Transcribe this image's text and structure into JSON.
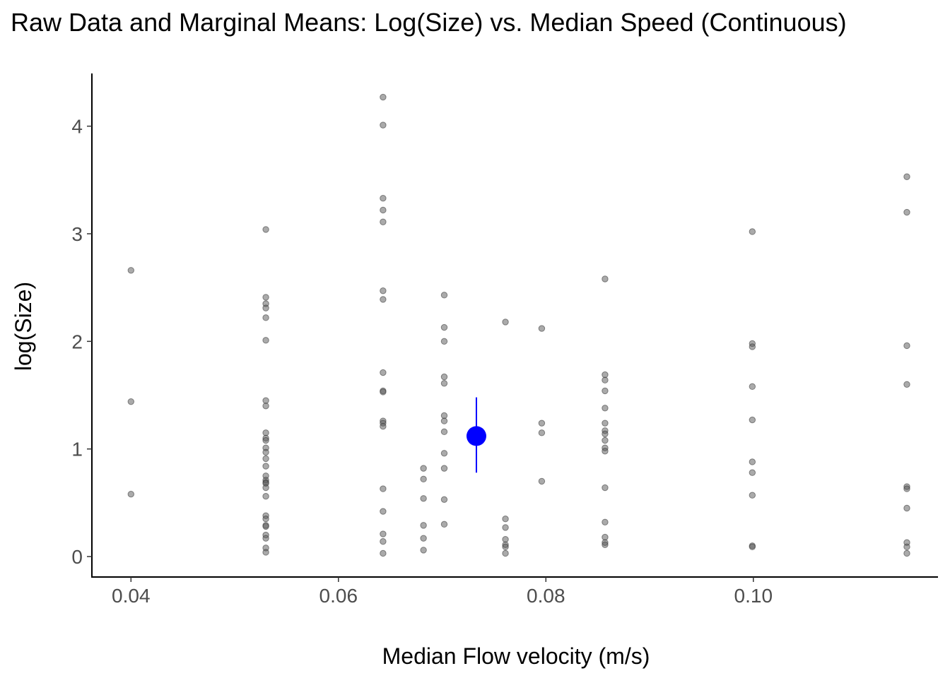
{
  "chart_data": {
    "type": "scatter",
    "title": "Raw Data and Marginal Means: Log(Size) vs. Median Speed (Continuous)",
    "xlabel": "Median Flow velocity (m/s)",
    "ylabel": "log(Size)",
    "xlim": [
      0.0363,
      0.1178
    ],
    "ylim": [
      -0.19,
      4.49
    ],
    "x_ticks": [
      {
        "value": 0.04,
        "label": "0.04"
      },
      {
        "value": 0.06,
        "label": "0.06"
      },
      {
        "value": 0.08,
        "label": "0.08"
      },
      {
        "value": 0.1,
        "label": "0.10"
      }
    ],
    "y_ticks": [
      {
        "value": 0,
        "label": "0"
      },
      {
        "value": 1,
        "label": "1"
      },
      {
        "value": 2,
        "label": "2"
      },
      {
        "value": 3,
        "label": "3"
      },
      {
        "value": 4,
        "label": "4"
      }
    ],
    "grid": false,
    "legend": "none",
    "series": [
      {
        "kind": "raw",
        "color": "#555555",
        "points": [
          {
            "x": 0.04,
            "y": 2.66
          },
          {
            "x": 0.04,
            "y": 1.44
          },
          {
            "x": 0.04,
            "y": 0.58
          },
          {
            "x": 0.053,
            "y": 3.04
          },
          {
            "x": 0.053,
            "y": 2.41
          },
          {
            "x": 0.053,
            "y": 2.35
          },
          {
            "x": 0.053,
            "y": 2.31
          },
          {
            "x": 0.053,
            "y": 2.22
          },
          {
            "x": 0.053,
            "y": 2.01
          },
          {
            "x": 0.053,
            "y": 1.45
          },
          {
            "x": 0.053,
            "y": 1.4
          },
          {
            "x": 0.053,
            "y": 1.15
          },
          {
            "x": 0.053,
            "y": 1.1
          },
          {
            "x": 0.053,
            "y": 1.08
          },
          {
            "x": 0.053,
            "y": 1.01
          },
          {
            "x": 0.053,
            "y": 0.97
          },
          {
            "x": 0.053,
            "y": 0.91
          },
          {
            "x": 0.053,
            "y": 0.84
          },
          {
            "x": 0.053,
            "y": 0.75
          },
          {
            "x": 0.053,
            "y": 0.71
          },
          {
            "x": 0.053,
            "y": 0.69
          },
          {
            "x": 0.053,
            "y": 0.68
          },
          {
            "x": 0.053,
            "y": 0.64
          },
          {
            "x": 0.053,
            "y": 0.56
          },
          {
            "x": 0.053,
            "y": 0.38
          },
          {
            "x": 0.053,
            "y": 0.35
          },
          {
            "x": 0.053,
            "y": 0.29
          },
          {
            "x": 0.053,
            "y": 0.28
          },
          {
            "x": 0.053,
            "y": 0.2
          },
          {
            "x": 0.053,
            "y": 0.17
          },
          {
            "x": 0.053,
            "y": 0.08
          },
          {
            "x": 0.053,
            "y": 0.04
          },
          {
            "x": 0.0643,
            "y": 4.27
          },
          {
            "x": 0.0643,
            "y": 4.01
          },
          {
            "x": 0.0643,
            "y": 3.33
          },
          {
            "x": 0.0643,
            "y": 3.22
          },
          {
            "x": 0.0643,
            "y": 3.11
          },
          {
            "x": 0.0643,
            "y": 2.47
          },
          {
            "x": 0.0643,
            "y": 2.39
          },
          {
            "x": 0.0643,
            "y": 1.71
          },
          {
            "x": 0.0643,
            "y": 1.54
          },
          {
            "x": 0.0643,
            "y": 1.53
          },
          {
            "x": 0.0643,
            "y": 1.26
          },
          {
            "x": 0.0643,
            "y": 1.24
          },
          {
            "x": 0.0643,
            "y": 1.21
          },
          {
            "x": 0.0643,
            "y": 0.63
          },
          {
            "x": 0.0643,
            "y": 0.42
          },
          {
            "x": 0.0643,
            "y": 0.21
          },
          {
            "x": 0.0643,
            "y": 0.14
          },
          {
            "x": 0.0643,
            "y": 0.03
          },
          {
            "x": 0.0682,
            "y": 0.82
          },
          {
            "x": 0.0682,
            "y": 0.72
          },
          {
            "x": 0.0682,
            "y": 0.54
          },
          {
            "x": 0.0682,
            "y": 0.29
          },
          {
            "x": 0.0682,
            "y": 0.17
          },
          {
            "x": 0.0682,
            "y": 0.06
          },
          {
            "x": 0.0702,
            "y": 2.43
          },
          {
            "x": 0.0702,
            "y": 2.13
          },
          {
            "x": 0.0702,
            "y": 2.0
          },
          {
            "x": 0.0702,
            "y": 1.67
          },
          {
            "x": 0.0702,
            "y": 1.61
          },
          {
            "x": 0.0702,
            "y": 1.31
          },
          {
            "x": 0.0702,
            "y": 1.26
          },
          {
            "x": 0.0702,
            "y": 1.16
          },
          {
            "x": 0.0702,
            "y": 0.96
          },
          {
            "x": 0.0702,
            "y": 0.82
          },
          {
            "x": 0.0702,
            "y": 0.53
          },
          {
            "x": 0.0702,
            "y": 0.3
          },
          {
            "x": 0.0761,
            "y": 2.18
          },
          {
            "x": 0.0761,
            "y": 0.35
          },
          {
            "x": 0.0761,
            "y": 0.27
          },
          {
            "x": 0.0761,
            "y": 0.16
          },
          {
            "x": 0.0761,
            "y": 0.11
          },
          {
            "x": 0.0761,
            "y": 0.09
          },
          {
            "x": 0.0761,
            "y": 0.03
          },
          {
            "x": 0.0796,
            "y": 2.12
          },
          {
            "x": 0.0796,
            "y": 1.24
          },
          {
            "x": 0.0796,
            "y": 1.15
          },
          {
            "x": 0.0796,
            "y": 0.7
          },
          {
            "x": 0.0857,
            "y": 2.58
          },
          {
            "x": 0.0857,
            "y": 1.69
          },
          {
            "x": 0.0857,
            "y": 1.64
          },
          {
            "x": 0.0857,
            "y": 1.54
          },
          {
            "x": 0.0857,
            "y": 1.38
          },
          {
            "x": 0.0857,
            "y": 1.24
          },
          {
            "x": 0.0857,
            "y": 1.17
          },
          {
            "x": 0.0857,
            "y": 1.14
          },
          {
            "x": 0.0857,
            "y": 1.08
          },
          {
            "x": 0.0857,
            "y": 1.01
          },
          {
            "x": 0.0857,
            "y": 0.98
          },
          {
            "x": 0.0857,
            "y": 0.64
          },
          {
            "x": 0.0857,
            "y": 0.32
          },
          {
            "x": 0.0857,
            "y": 0.18
          },
          {
            "x": 0.0857,
            "y": 0.13
          },
          {
            "x": 0.0857,
            "y": 0.11
          },
          {
            "x": 0.0999,
            "y": 3.02
          },
          {
            "x": 0.0999,
            "y": 1.98
          },
          {
            "x": 0.0999,
            "y": 1.95
          },
          {
            "x": 0.0999,
            "y": 1.58
          },
          {
            "x": 0.0999,
            "y": 1.27
          },
          {
            "x": 0.0999,
            "y": 0.88
          },
          {
            "x": 0.0999,
            "y": 0.78
          },
          {
            "x": 0.0999,
            "y": 0.57
          },
          {
            "x": 0.0999,
            "y": 0.1
          },
          {
            "x": 0.0999,
            "y": 0.09
          },
          {
            "x": 0.1148,
            "y": 3.53
          },
          {
            "x": 0.1148,
            "y": 3.2
          },
          {
            "x": 0.1148,
            "y": 1.96
          },
          {
            "x": 0.1148,
            "y": 1.6
          },
          {
            "x": 0.1148,
            "y": 0.65
          },
          {
            "x": 0.1148,
            "y": 0.63
          },
          {
            "x": 0.1148,
            "y": 0.45
          },
          {
            "x": 0.1148,
            "y": 0.13
          },
          {
            "x": 0.1148,
            "y": 0.09
          },
          {
            "x": 0.1148,
            "y": 0.03
          }
        ]
      },
      {
        "kind": "marginal-mean",
        "color": "#0000ff",
        "x": 0.0733,
        "y": 1.12,
        "lower": 0.78,
        "upper": 1.48
      }
    ]
  }
}
